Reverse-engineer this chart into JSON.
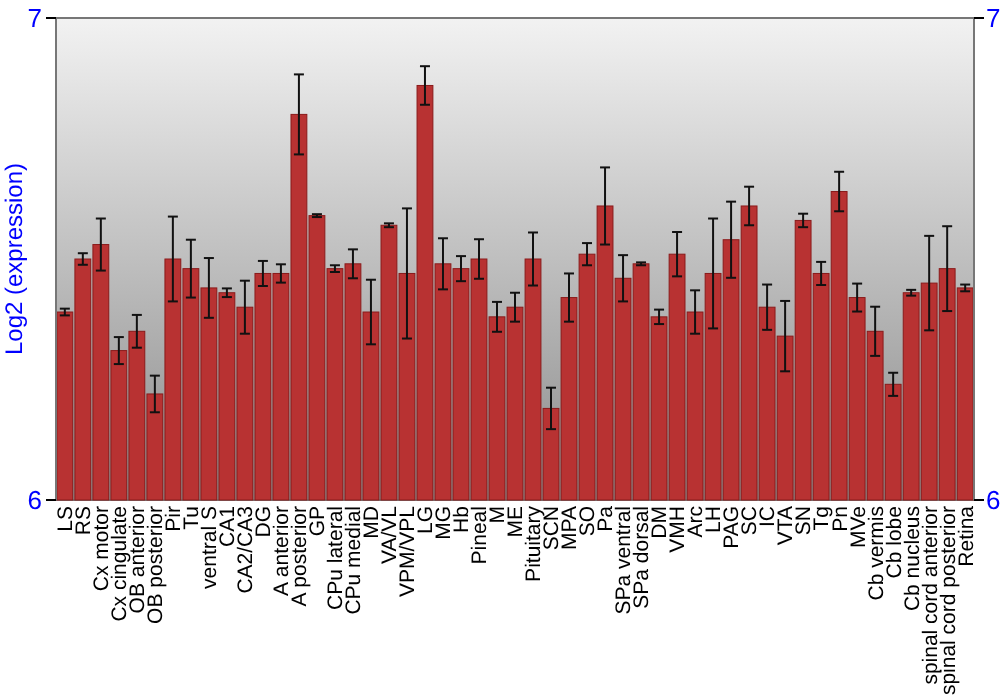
{
  "chart_data": {
    "type": "bar",
    "ylabel": "Log2 (expression)",
    "categories": [
      "LS",
      "RS",
      "Cx motor",
      "Cx cingulate",
      "OB anterior",
      "OB posterior",
      "Pir",
      "Tu",
      "ventral S",
      "CA1",
      "CA2/CA3",
      "DG",
      "A anterior",
      "A posterior",
      "GP",
      "CPu lateral",
      "CPu medial",
      "MD",
      "VA/VL",
      "VPM/VPL",
      "LG",
      "MG",
      "Hb",
      "Pineal",
      "M",
      "ME",
      "Pituitary",
      "SCN",
      "MPA",
      "SO",
      "Pa",
      "SPa ventral",
      "SPa dorsal",
      "DM",
      "VMH",
      "Arc",
      "LH",
      "PAG",
      "SC",
      "IC",
      "VTA",
      "SN",
      "Tg",
      "Pn",
      "MVe",
      "Cb vermis",
      "Cb lobe",
      "Cb nucleus",
      "spinal cord anterior",
      "spinal cord posterior",
      "Retina"
    ],
    "values": [
      6.39,
      6.5,
      6.53,
      6.31,
      6.35,
      6.22,
      6.5,
      6.48,
      6.44,
      6.43,
      6.4,
      6.47,
      6.47,
      6.8,
      6.59,
      6.48,
      6.49,
      6.39,
      6.57,
      6.47,
      6.86,
      6.49,
      6.48,
      6.5,
      6.38,
      6.4,
      6.5,
      6.19,
      6.42,
      6.51,
      6.61,
      6.46,
      6.49,
      6.38,
      6.51,
      6.39,
      6.47,
      6.54,
      6.61,
      6.4,
      6.34,
      6.58,
      6.47,
      6.64,
      6.42,
      6.35,
      6.24,
      6.43,
      6.45,
      6.48,
      6.44
    ],
    "errors": [
      0.007,
      0.012,
      0.054,
      0.028,
      0.034,
      0.038,
      0.088,
      0.06,
      0.062,
      0.009,
      0.055,
      0.026,
      0.019,
      0.083,
      0.003,
      0.007,
      0.03,
      0.067,
      0.004,
      0.135,
      0.04,
      0.053,
      0.026,
      0.041,
      0.031,
      0.03,
      0.055,
      0.043,
      0.05,
      0.023,
      0.08,
      0.048,
      0.003,
      0.015,
      0.046,
      0.045,
      0.114,
      0.079,
      0.04,
      0.047,
      0.073,
      0.014,
      0.024,
      0.041,
      0.029,
      0.051,
      0.024,
      0.006,
      0.098,
      0.088,
      0.007
    ],
    "color": "#b83232",
    "ylim": [
      6,
      7
    ],
    "yticks": [
      6,
      7
    ],
    "y2lim": [
      6,
      7
    ],
    "y2ticks": [
      6,
      7
    ],
    "grid": false
  }
}
